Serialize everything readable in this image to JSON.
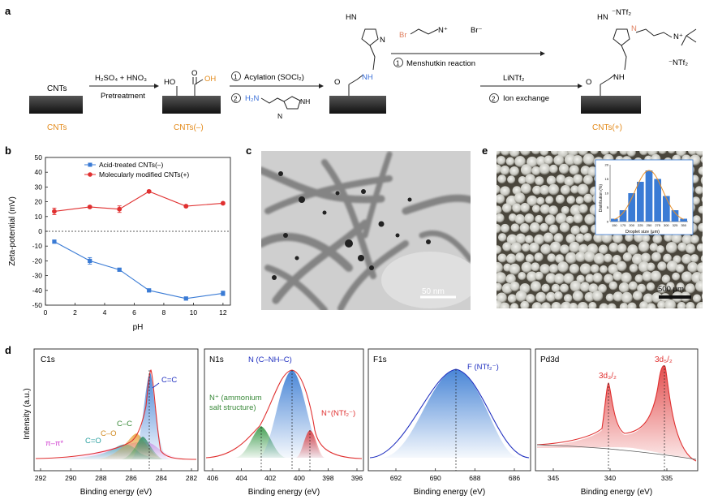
{
  "panel_a": {
    "letter": "a",
    "cnts_label": "CNTs",
    "cnts_caption": "CNTs",
    "step1_reagents": "H₂SO₄ + HNO₃",
    "step1_label": "Pretreatment",
    "acid_caption": "CNTs(–)",
    "oh1": "HO",
    "carbonyl_o": "O",
    "oh2": "OH",
    "step2_num1": "1",
    "step2_text1": "Acylation (SOCl₂)",
    "step2_num2": "2",
    "step2_amine": "H₂N",
    "mid_o": "O",
    "mid_nh": "NH",
    "mid_hn": "HN",
    "mid_n": "N",
    "step3_br": "Br",
    "step3_nplus": "N⁺",
    "step3_brminus": "Br⁻",
    "step3_num1": "1",
    "step3_text1": "Menshutkin reaction",
    "step3_reagent": "LiNTf₂",
    "step3_num2": "2",
    "step3_text2": "Ion exchange",
    "final_ntf2_top": "⁻NTf₂",
    "final_hn": "HN",
    "final_n": "N",
    "final_nplus": "N⁺",
    "final_ntf2_right": "⁻NTf₂",
    "final_nh": "NH",
    "final_o": "O",
    "final_caption": "CNTs(+)"
  },
  "panel_b": {
    "letter": "b",
    "chart_data": {
      "type": "line",
      "xlabel": "pH",
      "ylabel": "Zeta-potential (mV)",
      "xlim": [
        0,
        12.5
      ],
      "ylim": [
        -50,
        50
      ],
      "xticks": [
        0,
        2,
        4,
        6,
        8,
        10,
        12
      ],
      "yticks": [
        -50,
        -40,
        -30,
        -20,
        -10,
        0,
        10,
        20,
        30,
        40,
        50
      ],
      "legend_position": "top-right",
      "series": [
        {
          "name": "Acid-treated CNTs(–)",
          "color": "#3a7bd5",
          "marker": "square",
          "x": [
            0.6,
            3,
            5,
            7,
            9.5,
            12
          ],
          "y": [
            -7,
            -20,
            -26,
            -40,
            -45.5,
            -42
          ],
          "err": [
            0.8,
            2.2,
            0.8,
            0.8,
            0.8,
            1.5
          ]
        },
        {
          "name": "Molecularly modified CNTs(+)",
          "color": "#e03030",
          "marker": "circle",
          "x": [
            0.6,
            3,
            5,
            7,
            9.5,
            12
          ],
          "y": [
            13.5,
            16.5,
            15,
            27,
            17,
            19
          ],
          "err": [
            2.2,
            0.8,
            2.2,
            0.8,
            0.8,
            0.8
          ]
        }
      ]
    }
  },
  "panel_c": {
    "letter": "c",
    "scalebar": "50 nm"
  },
  "panel_e": {
    "letter": "e",
    "scalebar": "500 μm",
    "inset": {
      "chart_data": {
        "type": "bar",
        "xlabel": "Droplet size (μm)",
        "ylabel": "Distribution (%)",
        "categories": [
          "150",
          "175",
          "200",
          "225",
          "250",
          "275",
          "300",
          "325",
          "350"
        ],
        "values": [
          1,
          4,
          10,
          14,
          18,
          15,
          9,
          4,
          1
        ],
        "ylim": [
          0,
          20
        ],
        "yticks": [
          0,
          5,
          10,
          15,
          20
        ],
        "fit": "gaussian"
      }
    }
  },
  "panel_d": {
    "letter": "d",
    "ylabel": "Intensity (a.u.)",
    "xlabel": "Binding energy (eV)",
    "subplots": [
      {
        "title": "C1s",
        "xticks": [
          "292",
          "290",
          "288",
          "286",
          "284",
          "282"
        ],
        "annotations": {
          "cc": "C=C",
          "c_c": "C–C",
          "c_o": "C–O",
          "c_eq_o": "C=O",
          "pipi": "π–π*"
        }
      },
      {
        "title": "N1s",
        "xticks": [
          "406",
          "404",
          "402",
          "400",
          "398",
          "396"
        ],
        "annotations": {
          "nch": "N (C–NH–C)",
          "nplus_line1": "N⁺ (ammonium",
          "nplus_line2": "salt structure)",
          "nntf": "N⁺(NTf₂⁻)"
        }
      },
      {
        "title": "F1s",
        "xticks": [
          "692",
          "690",
          "688",
          "686"
        ],
        "annotations": {
          "f": "F (NTf₂⁻)"
        }
      },
      {
        "title": "Pd3d",
        "xticks": [
          "345",
          "340",
          "335"
        ],
        "annotations": {
          "pd32": "3d₃/₂",
          "pd52": "3d₅/₂"
        }
      }
    ]
  }
}
